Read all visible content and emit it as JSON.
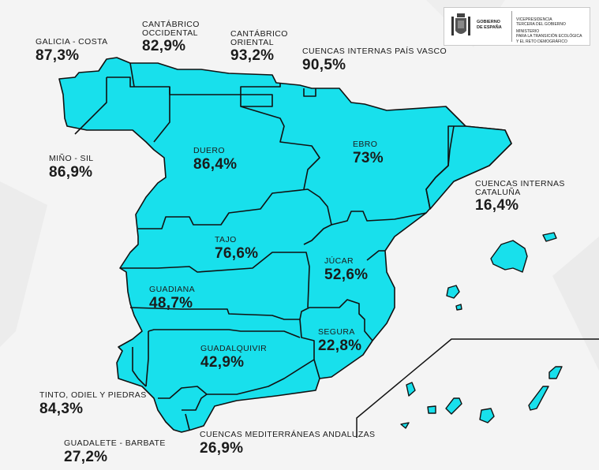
{
  "colors": {
    "region_fill": "#18e0ec",
    "border": "#111111",
    "background": "#f4f4f4"
  },
  "logo": {
    "government": "GOBIERNO\nDE ESPAÑA",
    "ministry_line1": "VICEPRESIDENCIA\nTERCERA DEL GOBIERNO",
    "ministry_line2": "MINISTERIO\nPARA LA TRANSICIÓN ECOLÓGICA\nY EL RETO DEMOGRÁFICO"
  },
  "basins": [
    {
      "name": "GALICIA - COSTA",
      "value": "87,3%"
    },
    {
      "name": "CANTÁBRICO\nOCCIDENTAL",
      "value": "82,9%"
    },
    {
      "name": "CANTÁBRICO\nORIENTAL",
      "value": "93,2%"
    },
    {
      "name": "CUENCAS INTERNAS PAÍS VASCO",
      "value": "90,5%"
    },
    {
      "name": "MIÑO - SIL",
      "value": "86,9%"
    },
    {
      "name": "DUERO",
      "value": "86,4%"
    },
    {
      "name": "EBRO",
      "value": "73%"
    },
    {
      "name": "CUENCAS INTERNAS\nCATALUÑA",
      "value": "16,4%"
    },
    {
      "name": "TAJO",
      "value": "76,6%"
    },
    {
      "name": "JÚCAR",
      "value": "52,6%"
    },
    {
      "name": "GUADIANA",
      "value": "48,7%"
    },
    {
      "name": "SEGURA",
      "value": "22,8%"
    },
    {
      "name": "GUADALQUIVIR",
      "value": "42,9%"
    },
    {
      "name": "TINTO, ODIEL Y PIEDRAS",
      "value": "84,3%"
    },
    {
      "name": "GUADALETE - BARBATE",
      "value": "27,2%"
    },
    {
      "name": "CUENCAS MEDITERRÁNEAS ANDALUZAS",
      "value": "26,9%"
    }
  ]
}
